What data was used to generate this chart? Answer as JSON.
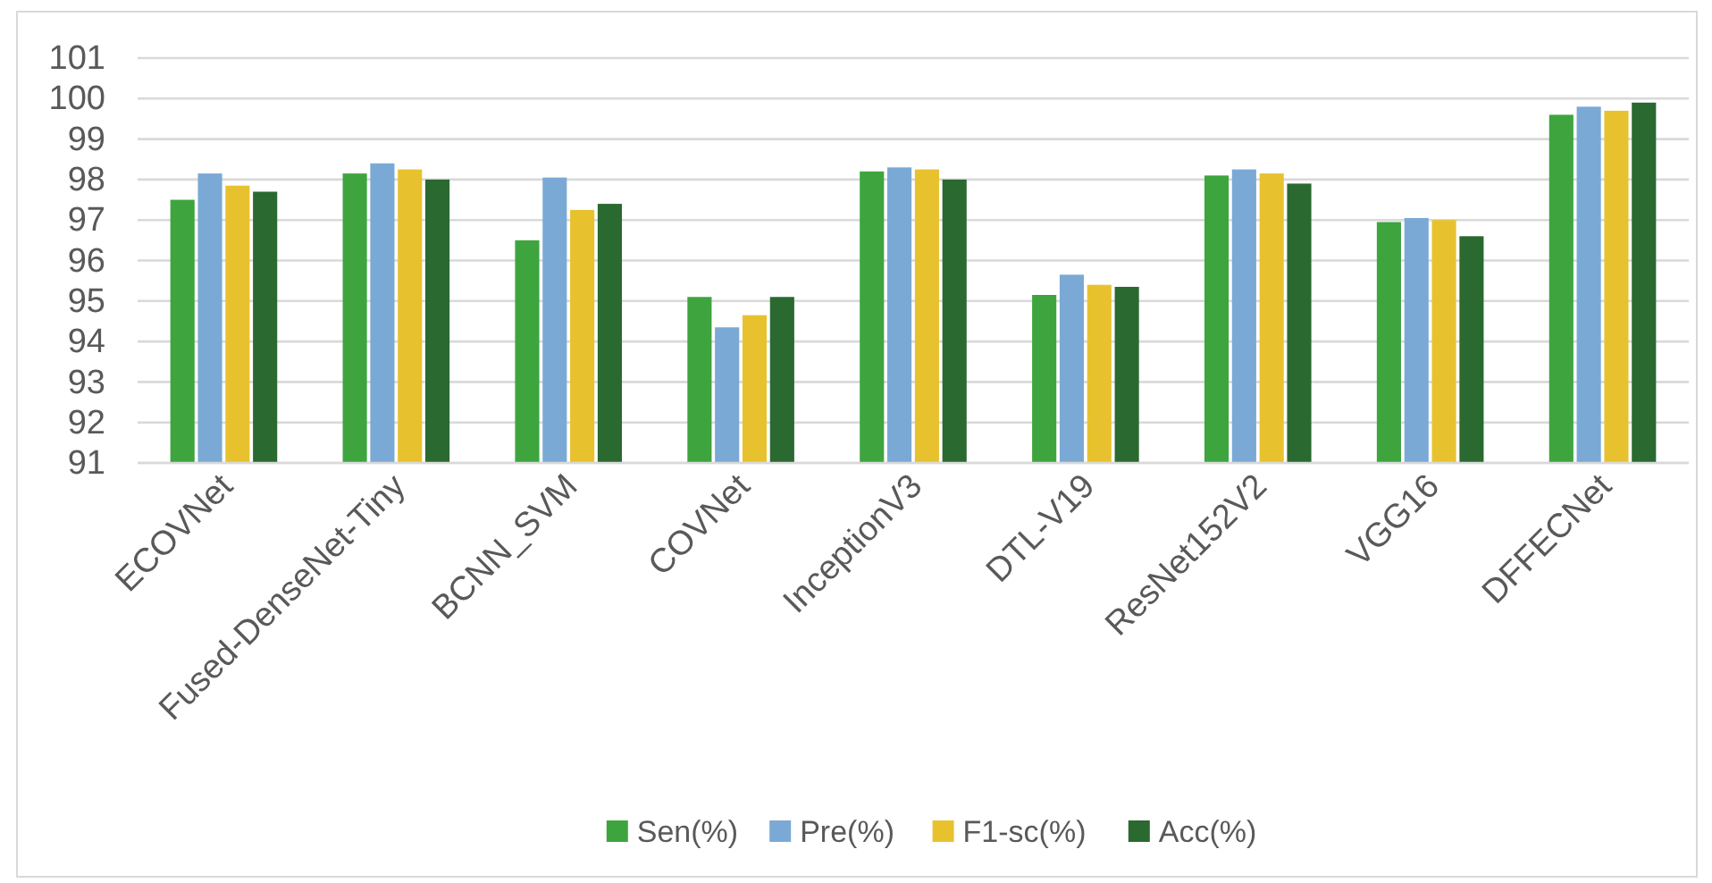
{
  "chart_data": {
    "type": "bar",
    "categories": [
      "ECOVNet",
      "Fused-DenseNet-Tiny",
      "BCNN_SVM",
      "COVNet",
      "InceptionV3",
      "DTL-V19",
      "ResNet152V2",
      "VGG16",
      "DFFECNet"
    ],
    "series": [
      {
        "name": "Sen(%)",
        "color": "#3ea53e",
        "values": [
          97.5,
          98.15,
          96.5,
          95.1,
          98.2,
          95.15,
          98.1,
          96.95,
          99.6
        ]
      },
      {
        "name": "Pre(%)",
        "color": "#7ba9d6",
        "values": [
          98.15,
          98.4,
          98.05,
          94.35,
          98.3,
          95.65,
          98.25,
          97.05,
          99.8
        ]
      },
      {
        "name": "F1-sc(%)",
        "color": "#e8c22e",
        "values": [
          97.85,
          98.25,
          97.25,
          94.65,
          98.25,
          95.4,
          98.15,
          97.0,
          99.7
        ]
      },
      {
        "name": "Acc(%)",
        "color": "#2a6930",
        "values": [
          97.7,
          98.0,
          97.4,
          95.1,
          98.0,
          95.35,
          97.9,
          96.6,
          99.9
        ]
      }
    ],
    "ylim": [
      91,
      101
    ],
    "yticks": [
      91,
      92,
      93,
      94,
      95,
      96,
      97,
      98,
      99,
      100,
      101
    ],
    "grid": "y",
    "legend": "bottom"
  }
}
